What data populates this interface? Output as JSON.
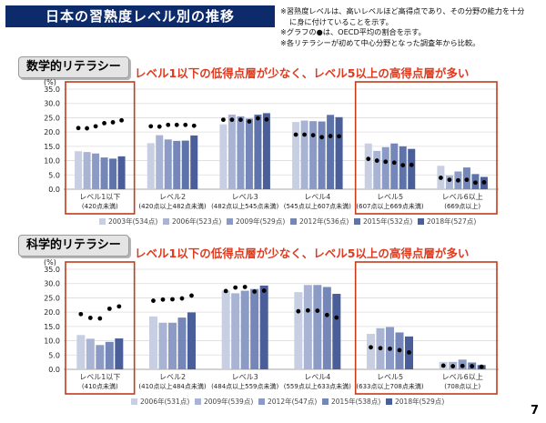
{
  "title": "日本の習熟度レベル別の推移",
  "notes": [
    "※習熟度レベルは、高いレベルほど高得点であり、その分野の能力を十分",
    "に身に付けていることを示す。",
    "※グラフの●は、OECD平均の割合を示す。",
    "※各リテラシーが初めて中心分野となった調査年から比較。"
  ],
  "page_number": "7",
  "chart_data": [
    {
      "type": "bar",
      "section": "数学的リテラシー",
      "headline": "レベル1以下の低得点層が少なく、レベル5以上の高得点層が多い",
      "ylabel": "(%)",
      "ylim": [
        0,
        35
      ],
      "yticks": [
        "0.0",
        "5.0",
        "10.0",
        "15.0",
        "20.0",
        "25.0",
        "30.0",
        "35.0"
      ],
      "categories": [
        "レベル1以下",
        "レベル2",
        "レベル3",
        "レベル4",
        "レベル5",
        "レベル6以上"
      ],
      "category_ranges": [
        "(420点未満)",
        "(420点以上482点未満)",
        "(482点以上545点未満)",
        "(545点以上607点未満)",
        "(607点以上669点未満)",
        "(669点以上)"
      ],
      "highlighted_categories": [
        0,
        4,
        5
      ],
      "series": [
        {
          "name": "2003年(534点)",
          "color": "#c8cfe2",
          "values": [
            13.3,
            16.1,
            22.7,
            23.5,
            16.0,
            8.2
          ]
        },
        {
          "name": "2006年(523点)",
          "color": "#a9b4d4",
          "values": [
            13.0,
            18.9,
            26.1,
            24.0,
            13.4,
            4.8
          ]
        },
        {
          "name": "2009年(529点)",
          "color": "#8c9bc6",
          "values": [
            12.5,
            17.4,
            25.5,
            23.8,
            14.7,
            6.2
          ]
        },
        {
          "name": "2012年(536点)",
          "color": "#7587b9",
          "values": [
            11.1,
            16.9,
            24.7,
            23.7,
            16.0,
            7.6
          ]
        },
        {
          "name": "2015年(532点)",
          "color": "#5f73ab",
          "values": [
            10.7,
            17.0,
            26.1,
            26.0,
            15.0,
            5.3
          ]
        },
        {
          "name": "2018年(527点)",
          "color": "#4a5e99",
          "values": [
            11.5,
            18.8,
            26.6,
            25.2,
            14.1,
            4.3
          ]
        }
      ],
      "oecd_average": [
        [
          21.4,
          22.0,
          24.3,
          19.1,
          10.6,
          4.0
        ],
        [
          21.3,
          21.9,
          24.3,
          19.1,
          10.0,
          3.3
        ],
        [
          22.0,
          22.5,
          24.3,
          18.9,
          9.6,
          3.1
        ],
        [
          23.1,
          22.5,
          23.7,
          18.2,
          9.3,
          3.3
        ],
        [
          23.4,
          22.5,
          24.8,
          18.6,
          8.4,
          2.3
        ],
        [
          24.1,
          22.2,
          24.4,
          18.5,
          8.5,
          2.4
        ]
      ]
    },
    {
      "type": "bar",
      "section": "科学的リテラシー",
      "headline": "レベル1以下の低得点層が少なく、レベル5以上の高得点層が多い",
      "ylabel": "(%)",
      "ylim": [
        0,
        35
      ],
      "yticks": [
        "0.0",
        "5.0",
        "10.0",
        "15.0",
        "20.0",
        "25.0",
        "30.0",
        "35.0"
      ],
      "categories": [
        "レベル1以下",
        "レベル2",
        "レベル3",
        "レベル4",
        "レベル5",
        "レベル6以上"
      ],
      "category_ranges": [
        "(410点未満)",
        "(410点以上484点未満)",
        "(484点以上559点未満)",
        "(559点以上633点未満)",
        "(633点以上708点未満)",
        "(708点以上)"
      ],
      "highlighted_categories": [
        0,
        4,
        5
      ],
      "series": [
        {
          "name": "2006年(531点)",
          "color": "#c8cfe2",
          "values": [
            12.0,
            18.5,
            27.5,
            27.0,
            12.4,
            2.6
          ]
        },
        {
          "name": "2009年(539点)",
          "color": "#a9b4d4",
          "values": [
            10.7,
            16.3,
            26.6,
            29.5,
            14.4,
            2.6
          ]
        },
        {
          "name": "2012年(547点)",
          "color": "#8c9bc6",
          "values": [
            8.5,
            16.3,
            27.5,
            29.5,
            14.8,
            3.4
          ]
        },
        {
          "name": "2015年(538点)",
          "color": "#7587b9",
          "values": [
            9.6,
            18.1,
            28.1,
            28.8,
            12.9,
            2.4
          ]
        },
        {
          "name": "2018年(529点)",
          "color": "#4a5e99",
          "values": [
            10.8,
            19.9,
            29.3,
            26.4,
            11.5,
            1.5
          ]
        }
      ],
      "oecd_average": [
        [
          19.3,
          24.0,
          27.4,
          20.3,
          7.7,
          1.3
        ],
        [
          18.0,
          24.4,
          28.6,
          20.6,
          7.4,
          1.1
        ],
        [
          17.8,
          24.5,
          28.8,
          20.5,
          7.2,
          1.2
        ],
        [
          21.2,
          24.8,
          27.2,
          19.0,
          6.7,
          1.1
        ],
        [
          22.0,
          25.8,
          27.5,
          18.1,
          5.9,
          0.9
        ]
      ]
    }
  ]
}
